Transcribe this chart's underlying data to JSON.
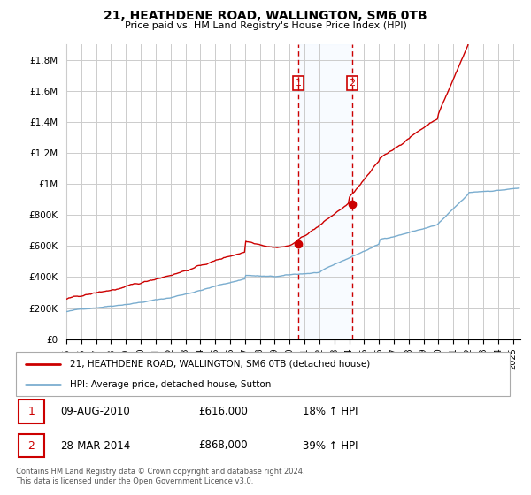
{
  "title": "21, HEATHDENE ROAD, WALLINGTON, SM6 0TB",
  "subtitle": "Price paid vs. HM Land Registry's House Price Index (HPI)",
  "ylabel_ticks": [
    0,
    200000,
    400000,
    600000,
    800000,
    1000000,
    1200000,
    1400000,
    1600000,
    1800000
  ],
  "ylabel_labels": [
    "£0",
    "£200K",
    "£400K",
    "£600K",
    "£800K",
    "£1M",
    "£1.2M",
    "£1.4M",
    "£1.6M",
    "£1.8M"
  ],
  "ylim": [
    0,
    1900000
  ],
  "xlim_start": 1995.0,
  "xlim_end": 2025.5,
  "background_color": "#ffffff",
  "grid_color": "#cccccc",
  "red_color": "#cc0000",
  "blue_color": "#7aadcf",
  "shade_color": "#ddeeff",
  "transaction1_year": 2010.583,
  "transaction1_price": 616000,
  "transaction1_label": "1",
  "transaction1_date": "09-AUG-2010",
  "transaction1_pct": "18%",
  "transaction2_year": 2014.208,
  "transaction2_price": 868000,
  "transaction2_label": "2",
  "transaction2_date": "28-MAR-2014",
  "transaction2_pct": "39%",
  "legend_line1": "21, HEATHDENE ROAD, WALLINGTON, SM6 0TB (detached house)",
  "legend_line2": "HPI: Average price, detached house, Sutton",
  "footer": "Contains HM Land Registry data © Crown copyright and database right 2024.\nThis data is licensed under the Open Government Licence v3.0."
}
